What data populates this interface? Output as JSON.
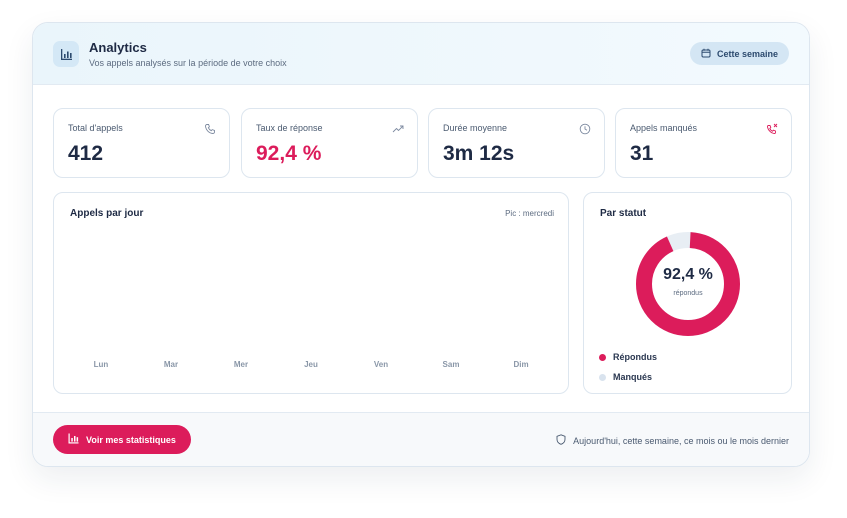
{
  "header": {
    "title": "Analytics",
    "subtitle": "Vos appels analysés sur la période de votre choix",
    "period_label": "Cette semaine",
    "header_icon": "bar-chart-icon",
    "period_icon": "calendar-icon"
  },
  "stats": [
    {
      "label": "Total d'appels",
      "value": "412",
      "icon": "phone-icon"
    },
    {
      "label": "Taux de réponse",
      "value": "92,4 %",
      "icon": "trend-up-icon"
    },
    {
      "label": "Durée moyenne",
      "value": "3m 12s",
      "icon": "clock-icon"
    },
    {
      "label": "Appels manqués",
      "value": "31",
      "icon": "phone-missed-icon"
    }
  ],
  "daily": {
    "title": "Appels par jour",
    "peak_note": "Pic : mercredi",
    "days": [
      "Lun",
      "Mar",
      "Mer",
      "Jeu",
      "Ven",
      "Sam",
      "Dim"
    ]
  },
  "status": {
    "title": "Par statut",
    "center_value": "92,4 %",
    "center_label": "répondus",
    "answered_fraction": 0.924,
    "legend": [
      {
        "label": "Répondus",
        "color": "#dc1c5b"
      },
      {
        "label": "Manqués",
        "color": "#d9e3ee"
      }
    ]
  },
  "footer": {
    "cta_label": "Voir mes statistiques",
    "note": "Aujourd'hui, cette semaine, ce mois ou le mois dernier",
    "note_icon": "shield-icon"
  },
  "colors": {
    "accent": "#dc1c5b",
    "muted_ring": "#e8eef4",
    "text": "#1e2a44"
  }
}
